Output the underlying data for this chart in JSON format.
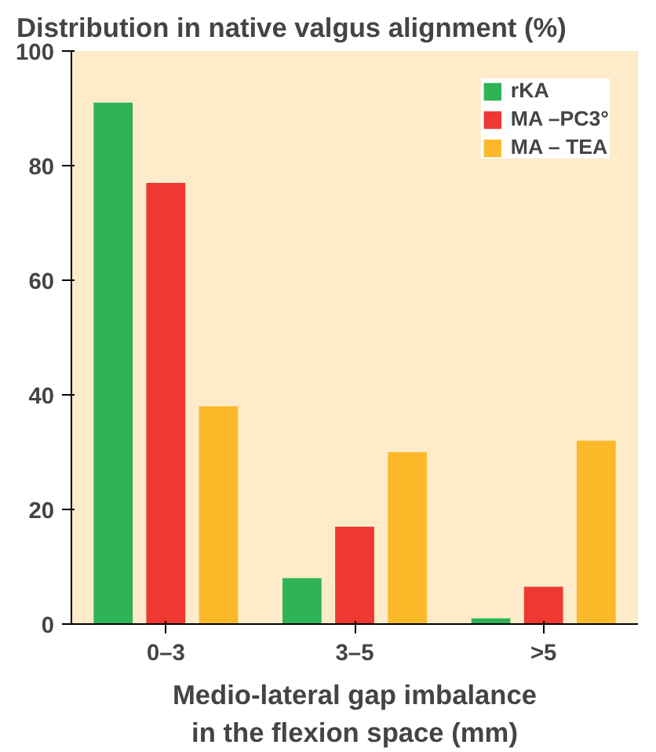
{
  "chart_data": {
    "type": "bar",
    "title": "Distribution in native valgus alignment (%)",
    "xlabel": "Medio-lateral gap imbalance\nin the flexion space (mm)",
    "categories": [
      "0–3",
      "3–5",
      ">5"
    ],
    "series": [
      {
        "name": "rKA",
        "color": "#2eb357",
        "values": [
          91,
          8,
          1
        ]
      },
      {
        "name": "MA –PC3°",
        "color": "#ee3831",
        "values": [
          77,
          17,
          6.5
        ]
      },
      {
        "name": "MA – TEA",
        "color": "#fbb92a",
        "values": [
          38,
          30,
          32
        ]
      }
    ],
    "ylim": [
      0,
      100
    ],
    "yticks": [
      0,
      20,
      40,
      60,
      80,
      100
    ],
    "grid": false,
    "legend": "top right"
  }
}
